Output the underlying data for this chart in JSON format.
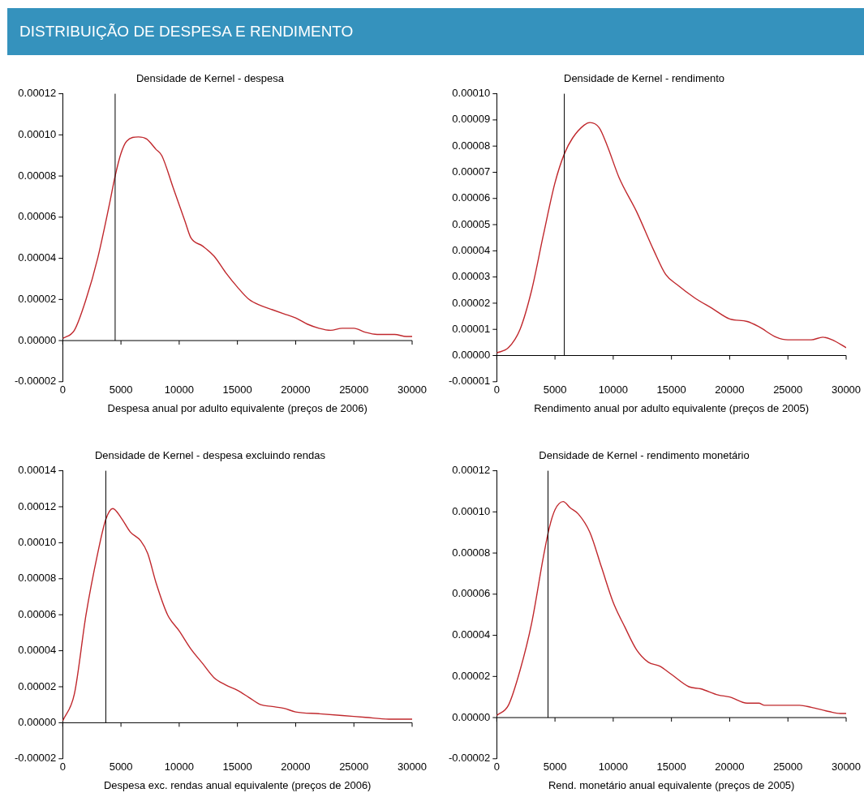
{
  "chart_data": [
    {
      "type": "other",
      "title": "DISTRIBUIÇÃO DE DESPESA E RENDIMENTO",
      "color": "#3592bd"
    },
    {
      "type": "line",
      "title": "Densidade de Kernel - despesa",
      "xlabel": "Despesa anual por adulto equivalente (preços de 2006)",
      "xlim": [
        0,
        30000
      ],
      "xticks": [
        0,
        5000,
        10000,
        15000,
        20000,
        25000,
        30000
      ],
      "ylim": [
        -2e-05,
        0.00012
      ],
      "yticks": [
        {
          "value": -2e-05,
          "label": "-0.00002"
        },
        {
          "value": 0,
          "label": "0.00000"
        },
        {
          "value": 2e-05,
          "label": "0.00002"
        },
        {
          "value": 4e-05,
          "label": "0.00004"
        },
        {
          "value": 6e-05,
          "label": "0.00006"
        },
        {
          "value": 8e-05,
          "label": "0.00008"
        },
        {
          "value": 0.0001,
          "label": "0.00010"
        },
        {
          "value": 0.00012,
          "label": "0.00012"
        }
      ],
      "legend": false,
      "marker": "none",
      "line_style": "solid",
      "ref_lines": [
        {
          "axis": "x",
          "value": 4500,
          "color": "#000000"
        }
      ],
      "series": [
        {
          "color": "#c0282d",
          "x": [
            0,
            1000,
            2000,
            3000,
            4000,
            4500,
            5000,
            5500,
            6500,
            7200,
            8000,
            8500,
            9500,
            10500,
            11000,
            12000,
            13000,
            14000,
            15000,
            16000,
            17000,
            18000,
            19000,
            20000,
            21000,
            22000,
            23000,
            24000,
            25000,
            26000,
            27000,
            28500,
            29500,
            30000
          ],
          "values": [
            1e-06,
            5e-06,
            2e-05,
            4e-05,
            6.6e-05,
            8e-05,
            9.1e-05,
            9.7e-05,
            9.9e-05,
            9.8e-05,
            9.3e-05,
            9e-05,
            7.4e-05,
            5.8e-05,
            5e-05,
            4.6e-05,
            4.1e-05,
            3.3e-05,
            2.6e-05,
            2e-05,
            1.7e-05,
            1.5e-05,
            1.3e-05,
            1.1e-05,
            8e-06,
            6e-06,
            5e-06,
            6e-06,
            6e-06,
            4e-06,
            3e-06,
            3e-06,
            2e-06,
            2e-06
          ]
        }
      ]
    },
    {
      "type": "line",
      "title": "Densidade de Kernel - rendimento",
      "xlabel": "Rendimento anual por adulto equivalente (preços de 2005)",
      "xlim": [
        0,
        30000
      ],
      "xticks": [
        0,
        5000,
        10000,
        15000,
        20000,
        25000,
        30000
      ],
      "ylim": [
        -1e-05,
        0.0001
      ],
      "yticks": [
        {
          "value": -1e-05,
          "label": "-0.00001"
        },
        {
          "value": 0,
          "label": "0.00000"
        },
        {
          "value": 1e-05,
          "label": "0.00001"
        },
        {
          "value": 2e-05,
          "label": "0.00002"
        },
        {
          "value": 3e-05,
          "label": "0.00003"
        },
        {
          "value": 4e-05,
          "label": "0.00004"
        },
        {
          "value": 5e-05,
          "label": "0.00005"
        },
        {
          "value": 6e-05,
          "label": "0.00006"
        },
        {
          "value": 7e-05,
          "label": "0.00007"
        },
        {
          "value": 8e-05,
          "label": "0.00008"
        },
        {
          "value": 9e-05,
          "label": "0.00009"
        },
        {
          "value": 0.0001,
          "label": "0.00010"
        }
      ],
      "legend": false,
      "marker": "none",
      "line_style": "solid",
      "ref_lines": [
        {
          "axis": "x",
          "value": 5800,
          "color": "#000000"
        }
      ],
      "series": [
        {
          "color": "#c0282d",
          "x": [
            0,
            1000,
            2000,
            3000,
            4000,
            5000,
            5800,
            6500,
            7500,
            8000,
            8800,
            9500,
            10500,
            12000,
            13500,
            14500,
            15500,
            17000,
            18500,
            20000,
            21500,
            22500,
            24000,
            25000,
            26000,
            27000,
            28000,
            28800,
            30000
          ],
          "values": [
            1e-06,
            3e-06,
            1e-05,
            2.5e-05,
            4.6e-05,
            6.6e-05,
            7.7e-05,
            8.3e-05,
            8.8e-05,
            8.9e-05,
            8.7e-05,
            8e-05,
            6.8e-05,
            5.5e-05,
            4e-05,
            3.1e-05,
            2.7e-05,
            2.2e-05,
            1.8e-05,
            1.4e-05,
            1.3e-05,
            1.1e-05,
            7e-06,
            6e-06,
            6e-06,
            6e-06,
            7e-06,
            6e-06,
            3e-06
          ]
        }
      ]
    },
    {
      "type": "line",
      "title": "Densidade de Kernel - despesa excluindo rendas",
      "xlabel": "Despesa exc. rendas anual equivalente (preços de 2006)",
      "xlim": [
        0,
        30000
      ],
      "xticks": [
        0,
        5000,
        10000,
        15000,
        20000,
        25000,
        30000
      ],
      "ylim": [
        -2e-05,
        0.00014
      ],
      "yticks": [
        {
          "value": -2e-05,
          "label": "-0.00002"
        },
        {
          "value": 0,
          "label": "0.00000"
        },
        {
          "value": 2e-05,
          "label": "0.00002"
        },
        {
          "value": 4e-05,
          "label": "0.00004"
        },
        {
          "value": 6e-05,
          "label": "0.00006"
        },
        {
          "value": 8e-05,
          "label": "0.00008"
        },
        {
          "value": 0.0001,
          "label": "0.00010"
        },
        {
          "value": 0.00012,
          "label": "0.00012"
        },
        {
          "value": 0.00014,
          "label": "0.00014"
        }
      ],
      "legend": false,
      "marker": "none",
      "line_style": "solid",
      "ref_lines": [
        {
          "axis": "x",
          "value": 3700,
          "color": "#000000"
        }
      ],
      "series": [
        {
          "color": "#c0282d",
          "x": [
            0,
            1000,
            2000,
            3000,
            3700,
            4300,
            5000,
            5800,
            6700,
            7300,
            8000,
            9000,
            10000,
            11000,
            12000,
            13000,
            14000,
            15000,
            16000,
            17000,
            18000,
            19000,
            20000,
            22000,
            24000,
            26000,
            28000,
            30000
          ],
          "values": [
            1e-06,
            1.6e-05,
            6e-05,
            9.4e-05,
            0.000113,
            0.000119,
            0.000114,
            0.000106,
            0.000101,
            9.4e-05,
            7.8e-05,
            6e-05,
            5.1e-05,
            4.1e-05,
            3.3e-05,
            2.5e-05,
            2.1e-05,
            1.8e-05,
            1.4e-05,
            1e-05,
            9e-06,
            8e-06,
            6e-06,
            5e-06,
            4e-06,
            3e-06,
            2e-06,
            2e-06
          ]
        }
      ]
    },
    {
      "type": "line",
      "title": "Densidade de Kernel - rendimento monetário",
      "xlabel": "Rend. monetário anual equivalente (preços de 2005)",
      "xlim": [
        0,
        30000
      ],
      "xticks": [
        0,
        5000,
        10000,
        15000,
        20000,
        25000,
        30000
      ],
      "ylim": [
        -2e-05,
        0.00012
      ],
      "yticks": [
        {
          "value": -2e-05,
          "label": "-0.00002"
        },
        {
          "value": 0,
          "label": "0.00000"
        },
        {
          "value": 2e-05,
          "label": "0.00002"
        },
        {
          "value": 4e-05,
          "label": "0.00004"
        },
        {
          "value": 6e-05,
          "label": "0.00006"
        },
        {
          "value": 8e-05,
          "label": "0.00008"
        },
        {
          "value": 0.0001,
          "label": "0.00010"
        },
        {
          "value": 0.00012,
          "label": "0.00012"
        }
      ],
      "legend": false,
      "marker": "none",
      "line_style": "solid",
      "ref_lines": [
        {
          "axis": "x",
          "value": 4400,
          "color": "#000000"
        }
      ],
      "series": [
        {
          "color": "#c0282d",
          "x": [
            0,
            1000,
            2000,
            3000,
            4000,
            4500,
            5000,
            5700,
            6300,
            7000,
            8000,
            9000,
            10000,
            11000,
            12000,
            13000,
            14000,
            15000,
            16500,
            17500,
            19000,
            20000,
            21500,
            22500,
            23000,
            25000,
            26000,
            27000,
            28500,
            29500,
            30000
          ],
          "values": [
            1e-06,
            6e-06,
            2.3e-05,
            4.6e-05,
            7.8e-05,
            9.2e-05,
            0.000101,
            0.000105,
            0.000102,
            9.9e-05,
            9e-05,
            7.3e-05,
            5.6e-05,
            4.4e-05,
            3.3e-05,
            2.7e-05,
            2.5e-05,
            2.1e-05,
            1.5e-05,
            1.4e-05,
            1.1e-05,
            1e-05,
            7e-06,
            7e-06,
            6e-06,
            6e-06,
            6e-06,
            5e-06,
            3e-06,
            2e-06,
            2e-06
          ]
        }
      ]
    }
  ]
}
